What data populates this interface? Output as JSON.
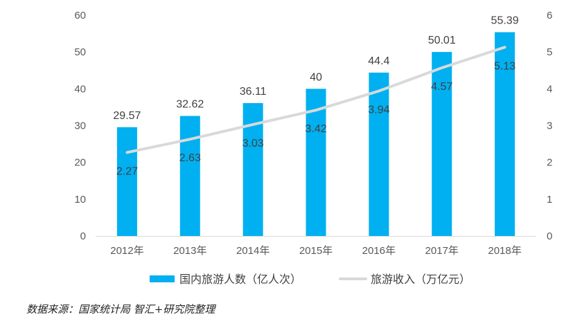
{
  "chart_data": {
    "type": "bar",
    "categories": [
      "2012年",
      "2013年",
      "2014年",
      "2015年",
      "2016年",
      "2017年",
      "2018年"
    ],
    "series": [
      {
        "name": "国内旅游人数（亿人次）",
        "type": "bar",
        "axis": "left",
        "color": "#00B0F0",
        "values": [
          29.57,
          32.62,
          36.11,
          40,
          44.4,
          50.01,
          55.39
        ],
        "labels": [
          "29.57",
          "32.62",
          "36.11",
          "40",
          "44.4",
          "50.01",
          "55.39"
        ]
      },
      {
        "name": "旅游收入（万亿元）",
        "type": "line",
        "axis": "right",
        "color": "#D9D9D9",
        "values": [
          2.27,
          2.63,
          3.03,
          3.42,
          3.94,
          4.57,
          5.13
        ],
        "labels": [
          "2.27",
          "2.63",
          "3.03",
          "3.42",
          "3.94",
          "4.57",
          "5.13"
        ]
      }
    ],
    "y_left": {
      "min": 0,
      "max": 60,
      "step": 10,
      "ticks": [
        "0",
        "10",
        "20",
        "30",
        "40",
        "50",
        "60"
      ]
    },
    "y_right": {
      "min": 0,
      "max": 6,
      "step": 1,
      "ticks": [
        "0",
        "1",
        "2",
        "3",
        "4",
        "5",
        "6"
      ]
    },
    "grid": false,
    "legend_position": "bottom"
  },
  "source_note": "数据来源：国家统计局 智汇+研究院整理"
}
